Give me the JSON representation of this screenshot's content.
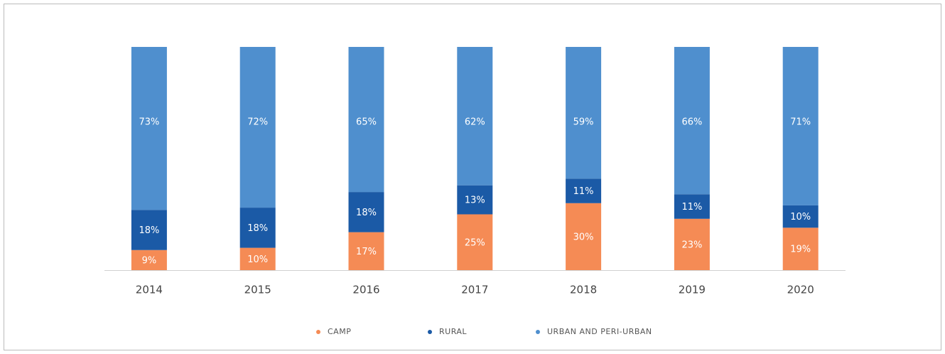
{
  "chart_data": {
    "type": "stacked_bar",
    "categories": [
      "2014",
      "2015",
      "2016",
      "2017",
      "2018",
      "2019",
      "2020"
    ],
    "ylim": [
      0,
      100
    ],
    "series": [
      {
        "name": "CAMP",
        "color": "#f58b55",
        "values": [
          9,
          10,
          17,
          25,
          30,
          23,
          19
        ],
        "value_labels": [
          "9%",
          "10%",
          "17%",
          "25%",
          "30%",
          "23%",
          "19%"
        ]
      },
      {
        "name": "RURAL",
        "color": "#1b5aa6",
        "values": [
          18,
          18,
          18,
          13,
          11,
          11,
          10
        ],
        "value_labels": [
          "18%",
          "18%",
          "18%",
          "13%",
          "11%",
          "11%",
          "10%"
        ]
      },
      {
        "name": "URBAN AND PERI-URBAN",
        "color": "#4f8fce",
        "values": [
          73,
          72,
          65,
          62,
          59,
          66,
          71
        ],
        "value_labels": [
          "73%",
          "72%",
          "65%",
          "62%",
          "59%",
          "66%",
          "71%"
        ]
      }
    ]
  }
}
